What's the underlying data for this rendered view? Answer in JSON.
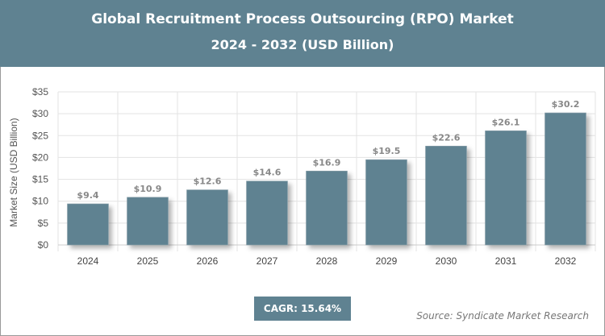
{
  "header": {
    "title": "Global Recruitment Process Outsourcing (RPO) Market",
    "subtitle": "2024 - 2032 (USD Billion)"
  },
  "chart_data": {
    "type": "bar",
    "title": "Global Recruitment Process Outsourcing (RPO) Market",
    "subtitle": "2024 - 2032 (USD Billion)",
    "categories": [
      "2024",
      "2025",
      "2026",
      "2027",
      "2028",
      "2029",
      "2030",
      "2031",
      "2032"
    ],
    "values": [
      9.4,
      10.9,
      12.6,
      14.6,
      16.9,
      19.5,
      22.6,
      26.1,
      30.2
    ],
    "data_labels": [
      "$9.4",
      "$10.9",
      "$12.6",
      "$14.6",
      "$16.9",
      "$19.5",
      "$22.6",
      "$26.1",
      "$30.2"
    ],
    "ylabel": "Market Size (USD Billion)",
    "xlabel": "",
    "ylim": [
      0,
      35
    ],
    "yticks": [
      0,
      5,
      10,
      15,
      20,
      25,
      30,
      35
    ],
    "ytick_labels": [
      "$0",
      "$5",
      "$10",
      "$15",
      "$20",
      "$25",
      "$30",
      "$35"
    ],
    "grid": true,
    "bar_color": "#5f8291"
  },
  "footer": {
    "cagr": "CAGR: 15.64%",
    "source": "Source: Syndicate Market Research"
  }
}
